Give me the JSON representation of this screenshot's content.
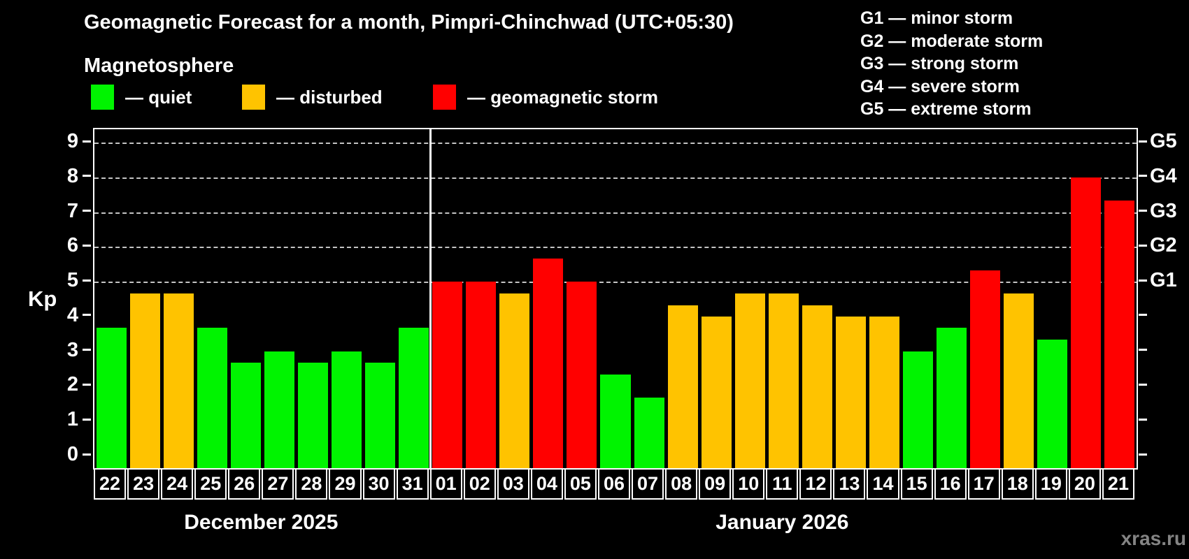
{
  "title": "Geomagnetic Forecast for a month, Pimpri-Chinchwad (UTC+05:30)",
  "subtitle": "Magnetosphere",
  "watermark": "xras.ru",
  "colors": {
    "quiet": "#00f400",
    "disturbed": "#ffc300",
    "storm": "#ff0000",
    "grid": "#c4c4c4",
    "axis": "#ffffff",
    "watermark": "#848484"
  },
  "legend": {
    "items": [
      {
        "label": "— quiet",
        "level": "quiet"
      },
      {
        "label": "— disturbed",
        "level": "disturbed"
      },
      {
        "label": "— geomagnetic storm",
        "level": "storm"
      }
    ]
  },
  "g_legend": {
    "items": [
      "G1 — minor storm",
      "G2 — moderate storm",
      "G3 — strong storm",
      "G4 — severe storm",
      "G5 — extreme storm"
    ]
  },
  "chart_data": {
    "type": "bar",
    "title": "Geomagnetic Forecast for a month, Pimpri-Chinchwad (UTC+05:30)",
    "ylabel": "Kp",
    "ylim": [
      0,
      9
    ],
    "yticks": [
      0,
      1,
      2,
      3,
      4,
      5,
      6,
      7,
      8,
      9
    ],
    "gridlines_kp": [
      5,
      6,
      7,
      8,
      9
    ],
    "grid": "dashed-horizontal",
    "legend_position": "top",
    "right_axis_labels": [
      {
        "label": "G1",
        "kp": 5
      },
      {
        "label": "G2",
        "kp": 6
      },
      {
        "label": "G3",
        "kp": 7
      },
      {
        "label": "G4",
        "kp": 8
      },
      {
        "label": "G5",
        "kp": 9
      }
    ],
    "months": [
      {
        "label": "December 2025",
        "days": [
          {
            "day": "22",
            "kp": 3.67,
            "level": "quiet"
          },
          {
            "day": "23",
            "kp": 4.67,
            "level": "disturbed"
          },
          {
            "day": "24",
            "kp": 4.67,
            "level": "disturbed"
          },
          {
            "day": "25",
            "kp": 3.67,
            "level": "quiet"
          },
          {
            "day": "26",
            "kp": 2.67,
            "level": "quiet"
          },
          {
            "day": "27",
            "kp": 3.0,
            "level": "quiet"
          },
          {
            "day": "28",
            "kp": 2.67,
            "level": "quiet"
          },
          {
            "day": "29",
            "kp": 3.0,
            "level": "quiet"
          },
          {
            "day": "30",
            "kp": 2.67,
            "level": "quiet"
          },
          {
            "day": "31",
            "kp": 3.67,
            "level": "quiet"
          }
        ]
      },
      {
        "label": "January 2026",
        "days": [
          {
            "day": "01",
            "kp": 5.0,
            "level": "storm"
          },
          {
            "day": "02",
            "kp": 5.0,
            "level": "storm"
          },
          {
            "day": "03",
            "kp": 4.67,
            "level": "disturbed"
          },
          {
            "day": "04",
            "kp": 5.67,
            "level": "storm"
          },
          {
            "day": "05",
            "kp": 5.0,
            "level": "storm"
          },
          {
            "day": "06",
            "kp": 2.33,
            "level": "quiet"
          },
          {
            "day": "07",
            "kp": 1.67,
            "level": "quiet"
          },
          {
            "day": "08",
            "kp": 4.33,
            "level": "disturbed"
          },
          {
            "day": "09",
            "kp": 4.0,
            "level": "disturbed"
          },
          {
            "day": "10",
            "kp": 4.67,
            "level": "disturbed"
          },
          {
            "day": "11",
            "kp": 4.67,
            "level": "disturbed"
          },
          {
            "day": "12",
            "kp": 4.33,
            "level": "disturbed"
          },
          {
            "day": "13",
            "kp": 4.0,
            "level": "disturbed"
          },
          {
            "day": "14",
            "kp": 4.0,
            "level": "disturbed"
          },
          {
            "day": "15",
            "kp": 3.0,
            "level": "quiet"
          },
          {
            "day": "16",
            "kp": 3.67,
            "level": "quiet"
          },
          {
            "day": "17",
            "kp": 5.33,
            "level": "storm"
          },
          {
            "day": "18",
            "kp": 4.67,
            "level": "disturbed"
          },
          {
            "day": "19",
            "kp": 3.33,
            "level": "quiet"
          },
          {
            "day": "20",
            "kp": 8.0,
            "level": "storm"
          },
          {
            "day": "21",
            "kp": 7.33,
            "level": "storm"
          }
        ]
      }
    ]
  }
}
